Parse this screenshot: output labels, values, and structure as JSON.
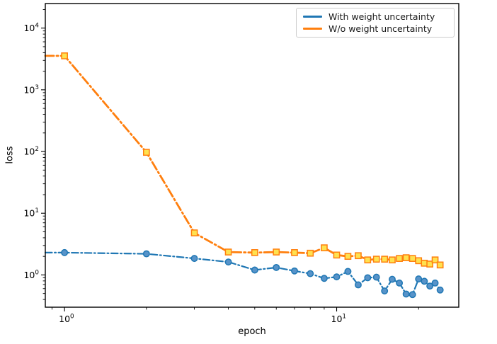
{
  "figure": {
    "background": "#ffffff",
    "spine_color": "#000000",
    "tick_color": "#000000"
  },
  "axes": {
    "xlabel": "epoch",
    "ylabel": "loss"
  },
  "legend": {
    "position": "upper-right-inside",
    "entries": [
      {
        "label": "With weight uncertainty",
        "color": "#1f77b4"
      },
      {
        "label": "W/o weight uncertainty",
        "color": "#ff7f0e"
      }
    ]
  },
  "chart_data": {
    "type": "line",
    "title": "",
    "xlabel": "epoch",
    "ylabel": "loss",
    "xscale": "log",
    "yscale": "log",
    "xlim": [
      0.85,
      28.1
    ],
    "ylim": [
      0.3,
      25000
    ],
    "grid": false,
    "legend_position": "upper right",
    "x_major_ticks": [
      1,
      10
    ],
    "y_major_ticks": [
      1,
      10,
      100,
      1000,
      10000
    ],
    "x_tick_labels": [
      "10⁰",
      "10¹"
    ],
    "y_tick_labels": [
      "10⁰",
      "10¹",
      "10²",
      "10³",
      "10⁴"
    ],
    "x": [
      1,
      2,
      3,
      4,
      5,
      6,
      7,
      8,
      9,
      10,
      11,
      12,
      13,
      14,
      15,
      16,
      17,
      18,
      19,
      20,
      21,
      22,
      23,
      24
    ],
    "series": [
      {
        "name": "With weight uncertainty",
        "color": "#1f77b4",
        "linestyle": "dash-dot",
        "linewidth": 2.2,
        "marker": "circle",
        "marker_fill": "#5793c9",
        "values": [
          2.3,
          2.2,
          1.85,
          1.62,
          1.2,
          1.32,
          1.16,
          1.05,
          0.88,
          0.93,
          1.14,
          0.69,
          0.9,
          0.92,
          0.55,
          0.85,
          0.74,
          0.49,
          0.48,
          0.86,
          0.79,
          0.66,
          0.74,
          0.57
        ]
      },
      {
        "name": "W/o weight uncertainty",
        "color": "#ff7f0e",
        "linestyle": "dash-dot",
        "linewidth": 2.8,
        "marker": "square",
        "marker_fill": "#ffe14f",
        "values": [
          3550,
          97,
          4.8,
          2.35,
          2.3,
          2.35,
          2.3,
          2.25,
          2.75,
          2.1,
          2.0,
          2.05,
          1.75,
          1.8,
          1.8,
          1.75,
          1.85,
          1.9,
          1.85,
          1.7,
          1.55,
          1.5,
          1.75,
          1.45
        ]
      }
    ],
    "clipped_entry_from_left": true
  }
}
